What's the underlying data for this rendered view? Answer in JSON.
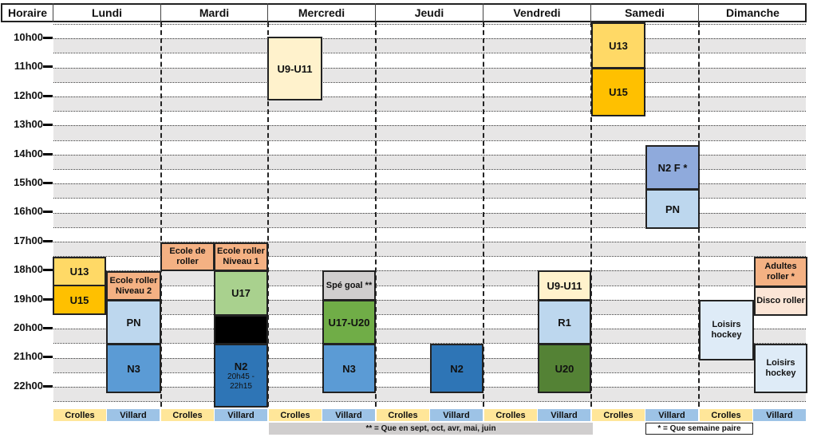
{
  "header": {
    "time_col": "Horaire",
    "days": [
      "Lundi",
      "Mardi",
      "Mercredi",
      "Jeudi",
      "Vendredi",
      "Samedi",
      "Dimanche"
    ]
  },
  "times": [
    "10h00",
    "11h00",
    "12h00",
    "13h00",
    "14h00",
    "15h00",
    "16h00",
    "17h00",
    "18h00",
    "19h00",
    "20h00",
    "21h00",
    "22h00"
  ],
  "venues": {
    "crolles": "Crolles",
    "villard": "Villard"
  },
  "colors": {
    "yellow": "#ffd966",
    "orange": "#ffc000",
    "light_yellow": "#fff2cc",
    "light_blue": "#bdd7ee",
    "mid_blue": "#5b9bd5",
    "dark_blue": "#2e75b6",
    "salmon": "#f4b183",
    "light_green": "#a9d18e",
    "green": "#70ad47",
    "dark_green": "#548235",
    "grey": "#d0cece",
    "periwinkle": "#8faadc",
    "black": "#000000",
    "pale_blue": "#deebf7",
    "band_grey": "#e7e6e6",
    "venue_crolles": "#ffe699",
    "venue_villard": "#9dc3e6"
  },
  "blocks": {
    "lun_u13": "U13",
    "lun_u15": "U15",
    "lun_ecole2_a": "Ecole roller",
    "lun_ecole2_b": "Niveau 2",
    "lun_pn": "PN",
    "lun_n3": "N3",
    "mar_ecole_a": "Ecole de",
    "mar_ecole_b": "roller",
    "mar_ecole1_a": "Ecole roller",
    "mar_ecole1_b": "Niveau 1",
    "mar_u17": "U17",
    "mar_n2": "N2",
    "mar_n2_time_a": "20h45 -",
    "mar_n2_time_b": "22h15",
    "mer_u9": "U9-U11",
    "mer_spe": "Spé goal **",
    "mer_u17u20": "U17-U20",
    "mer_n3": "N3",
    "jeu_n2": "N2",
    "ven_u9": "U9-U11",
    "ven_r1": "R1",
    "ven_u20": "U20",
    "sam_u13": "U13",
    "sam_u15": "U15",
    "sam_n2f": "N2 F *",
    "sam_pn": "PN",
    "dim_loisirs1_a": "Loisirs",
    "dim_loisirs1_b": "hockey",
    "dim_adultes_a": "Adultes",
    "dim_adultes_b": "roller *",
    "dim_disco": "Disco roller",
    "dim_loisirs2_a": "Loisirs",
    "dim_loisirs2_b": "hockey"
  },
  "notes": {
    "even_months": "** = Que en sept, oct, avr, mai, juin",
    "even_week": "* = Que semaine paire"
  }
}
